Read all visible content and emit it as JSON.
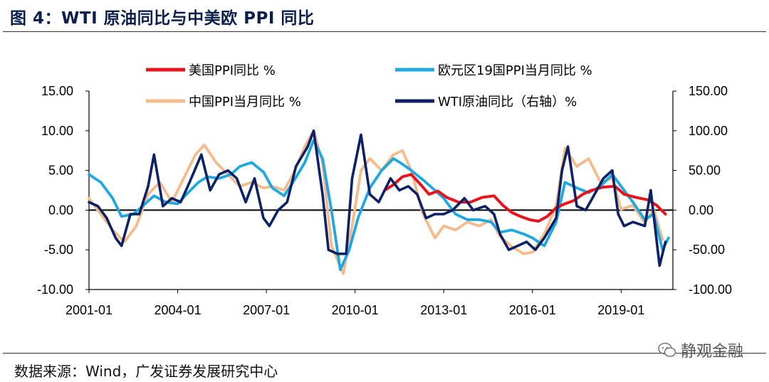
{
  "header": {
    "title": "图 4：WTI 原油同比与中美欧 PPI 同比"
  },
  "footer": {
    "source": "数据来源：Wind，广发证券发展研究中心",
    "watermark": "静观金融"
  },
  "colors": {
    "us": "#e8141b",
    "ez": "#1fa8e0",
    "cn": "#f4bb8d",
    "wti": "#0d2266"
  },
  "chart_data": {
    "type": "line",
    "title": "WTI 原油同比与中美欧 PPI 同比",
    "x_ticks": [
      "2001-01",
      "2004-01",
      "2007-01",
      "2010-01",
      "2013-01",
      "2016-01",
      "2019-01"
    ],
    "x_range": [
      2001.0,
      2020.75
    ],
    "y_left": {
      "range": [
        -10,
        15
      ],
      "ticks": [
        "15.00",
        "10.00",
        "5.00",
        "0.00",
        "-5.00",
        "-10.00"
      ]
    },
    "y_right": {
      "range": [
        -100,
        150
      ],
      "ticks": [
        "150.00",
        "100.00",
        "50.00",
        "0.00",
        "-50.00",
        "-100.00"
      ]
    },
    "legend": [
      "美国PPI同比 %",
      "欧元区19国PPI当月同比 %",
      "中国PPI当月同比 %",
      "WTI原油同比（右轴）%"
    ],
    "series": [
      {
        "name": "美国PPI同比 %",
        "axis": "left",
        "color_key": "us",
        "points": [
          [
            2011.0,
            2.5
          ],
          [
            2011.3,
            3.2
          ],
          [
            2011.6,
            4.2
          ],
          [
            2011.9,
            4.5
          ],
          [
            2012.2,
            3.3
          ],
          [
            2012.5,
            2.0
          ],
          [
            2012.8,
            2.4
          ],
          [
            2013.1,
            1.6
          ],
          [
            2013.5,
            1.0
          ],
          [
            2013.9,
            1.0
          ],
          [
            2014.3,
            1.6
          ],
          [
            2014.7,
            1.8
          ],
          [
            2015.0,
            0.6
          ],
          [
            2015.3,
            -0.3
          ],
          [
            2015.6,
            -0.8
          ],
          [
            2015.9,
            -1.2
          ],
          [
            2016.2,
            -1.4
          ],
          [
            2016.5,
            -0.8
          ],
          [
            2016.8,
            0.3
          ],
          [
            2017.1,
            0.8
          ],
          [
            2017.4,
            1.2
          ],
          [
            2017.7,
            2.0
          ],
          [
            2018.0,
            2.5
          ],
          [
            2018.4,
            2.9
          ],
          [
            2018.8,
            3.0
          ],
          [
            2019.1,
            2.0
          ],
          [
            2019.5,
            1.6
          ],
          [
            2019.9,
            1.3
          ],
          [
            2020.2,
            0.6
          ],
          [
            2020.5,
            -0.5
          ]
        ]
      },
      {
        "name": "欧元区19国PPI当月同比 %",
        "axis": "left",
        "color_key": "ez",
        "points": [
          [
            2001.0,
            4.5
          ],
          [
            2001.4,
            3.5
          ],
          [
            2001.8,
            1.5
          ],
          [
            2002.1,
            -0.8
          ],
          [
            2002.5,
            -0.5
          ],
          [
            2002.9,
            0.8
          ],
          [
            2003.2,
            1.8
          ],
          [
            2003.6,
            1.0
          ],
          [
            2004.0,
            0.8
          ],
          [
            2004.3,
            2.0
          ],
          [
            2004.7,
            3.5
          ],
          [
            2005.0,
            4.2
          ],
          [
            2005.4,
            4.0
          ],
          [
            2005.8,
            4.5
          ],
          [
            2006.1,
            5.5
          ],
          [
            2006.5,
            6.0
          ],
          [
            2006.9,
            4.8
          ],
          [
            2007.2,
            2.8
          ],
          [
            2007.6,
            1.8
          ],
          [
            2007.9,
            3.5
          ],
          [
            2008.3,
            6.0
          ],
          [
            2008.6,
            8.8
          ],
          [
            2008.9,
            6.5
          ],
          [
            2009.2,
            0.0
          ],
          [
            2009.5,
            -7.5
          ],
          [
            2009.8,
            -5.0
          ],
          [
            2010.1,
            -1.0
          ],
          [
            2010.5,
            2.8
          ],
          [
            2010.9,
            5.0
          ],
          [
            2011.3,
            6.5
          ],
          [
            2011.6,
            5.8
          ],
          [
            2011.9,
            5.0
          ],
          [
            2012.3,
            3.8
          ],
          [
            2012.7,
            2.5
          ],
          [
            2013.0,
            1.5
          ],
          [
            2013.4,
            -0.5
          ],
          [
            2013.8,
            -1.2
          ],
          [
            2014.2,
            -1.2
          ],
          [
            2014.6,
            -1.5
          ],
          [
            2014.9,
            -2.8
          ],
          [
            2015.3,
            -2.5
          ],
          [
            2015.7,
            -3.0
          ],
          [
            2016.0,
            -3.5
          ],
          [
            2016.4,
            -4.5
          ],
          [
            2016.8,
            -1.5
          ],
          [
            2017.1,
            3.5
          ],
          [
            2017.5,
            2.8
          ],
          [
            2017.9,
            2.2
          ],
          [
            2018.3,
            3.0
          ],
          [
            2018.7,
            4.5
          ],
          [
            2019.0,
            3.0
          ],
          [
            2019.4,
            1.0
          ],
          [
            2019.8,
            -1.2
          ],
          [
            2020.1,
            -0.5
          ],
          [
            2020.4,
            -5.0
          ],
          [
            2020.6,
            -3.5
          ]
        ]
      },
      {
        "name": "中国PPI当月同比 %",
        "axis": "left",
        "color_key": "cn",
        "points": [
          [
            2001.0,
            1.5
          ],
          [
            2001.4,
            -0.5
          ],
          [
            2001.8,
            -2.5
          ],
          [
            2002.2,
            -4.0
          ],
          [
            2002.6,
            -2.0
          ],
          [
            2003.0,
            2.0
          ],
          [
            2003.4,
            3.5
          ],
          [
            2003.8,
            1.0
          ],
          [
            2004.2,
            4.0
          ],
          [
            2004.6,
            7.0
          ],
          [
            2004.9,
            8.2
          ],
          [
            2005.3,
            6.0
          ],
          [
            2005.7,
            4.5
          ],
          [
            2006.1,
            3.0
          ],
          [
            2006.5,
            3.5
          ],
          [
            2006.9,
            2.8
          ],
          [
            2007.2,
            3.0
          ],
          [
            2007.6,
            2.5
          ],
          [
            2007.9,
            4.5
          ],
          [
            2008.3,
            8.0
          ],
          [
            2008.6,
            10.0
          ],
          [
            2008.9,
            6.0
          ],
          [
            2009.2,
            -4.5
          ],
          [
            2009.6,
            -8.0
          ],
          [
            2009.9,
            -2.0
          ],
          [
            2010.2,
            5.0
          ],
          [
            2010.5,
            6.5
          ],
          [
            2010.9,
            5.0
          ],
          [
            2011.3,
            7.0
          ],
          [
            2011.6,
            7.5
          ],
          [
            2011.9,
            5.0
          ],
          [
            2012.3,
            -0.5
          ],
          [
            2012.7,
            -3.5
          ],
          [
            2013.0,
            -2.0
          ],
          [
            2013.4,
            -2.5
          ],
          [
            2013.8,
            -1.5
          ],
          [
            2014.2,
            -2.0
          ],
          [
            2014.6,
            -1.2
          ],
          [
            2014.9,
            -3.3
          ],
          [
            2015.3,
            -4.6
          ],
          [
            2015.7,
            -5.5
          ],
          [
            2016.0,
            -5.3
          ],
          [
            2016.4,
            -3.0
          ],
          [
            2016.8,
            0.5
          ],
          [
            2017.1,
            7.8
          ],
          [
            2017.5,
            5.5
          ],
          [
            2017.9,
            6.5
          ],
          [
            2018.3,
            3.5
          ],
          [
            2018.7,
            4.0
          ],
          [
            2019.0,
            0.1
          ],
          [
            2019.4,
            0.6
          ],
          [
            2019.8,
            -1.6
          ],
          [
            2020.1,
            0.1
          ],
          [
            2020.4,
            -3.7
          ]
        ]
      },
      {
        "name": "WTI原油同比（右轴）%",
        "axis": "right",
        "color_key": "wti",
        "points": [
          [
            2001.0,
            10
          ],
          [
            2001.3,
            5
          ],
          [
            2001.6,
            -10
          ],
          [
            2001.9,
            -35
          ],
          [
            2002.1,
            -45
          ],
          [
            2002.4,
            -5
          ],
          [
            2002.7,
            -5
          ],
          [
            2003.0,
            30
          ],
          [
            2003.2,
            70
          ],
          [
            2003.5,
            5
          ],
          [
            2003.8,
            15
          ],
          [
            2004.1,
            10
          ],
          [
            2004.4,
            35
          ],
          [
            2004.8,
            70
          ],
          [
            2005.1,
            25
          ],
          [
            2005.4,
            45
          ],
          [
            2005.7,
            50
          ],
          [
            2006.0,
            40
          ],
          [
            2006.3,
            10
          ],
          [
            2006.6,
            40
          ],
          [
            2006.9,
            -10
          ],
          [
            2007.1,
            -20
          ],
          [
            2007.4,
            0
          ],
          [
            2007.7,
            10
          ],
          [
            2008.0,
            55
          ],
          [
            2008.4,
            80
          ],
          [
            2008.6,
            100
          ],
          [
            2008.9,
            20
          ],
          [
            2009.1,
            -50
          ],
          [
            2009.4,
            -55
          ],
          [
            2009.7,
            -55
          ],
          [
            2009.9,
            40
          ],
          [
            2010.2,
            95
          ],
          [
            2010.5,
            20
          ],
          [
            2010.8,
            10
          ],
          [
            2011.2,
            40
          ],
          [
            2011.5,
            25
          ],
          [
            2011.8,
            30
          ],
          [
            2012.1,
            20
          ],
          [
            2012.4,
            -10
          ],
          [
            2012.7,
            -5
          ],
          [
            2013.0,
            -5
          ],
          [
            2013.3,
            0
          ],
          [
            2013.7,
            15
          ],
          [
            2014.0,
            0
          ],
          [
            2014.4,
            5
          ],
          [
            2014.7,
            -5
          ],
          [
            2014.9,
            -30
          ],
          [
            2015.2,
            -50
          ],
          [
            2015.5,
            -45
          ],
          [
            2015.8,
            -40
          ],
          [
            2016.1,
            -50
          ],
          [
            2016.4,
            -35
          ],
          [
            2016.8,
            -10
          ],
          [
            2017.0,
            50
          ],
          [
            2017.2,
            80
          ],
          [
            2017.5,
            5
          ],
          [
            2017.8,
            0
          ],
          [
            2018.1,
            20
          ],
          [
            2018.4,
            40
          ],
          [
            2018.7,
            50
          ],
          [
            2018.9,
            -5
          ],
          [
            2019.1,
            -20
          ],
          [
            2019.4,
            -15
          ],
          [
            2019.8,
            -20
          ],
          [
            2020.0,
            25
          ],
          [
            2020.3,
            -70
          ],
          [
            2020.5,
            -40
          ]
        ]
      }
    ]
  }
}
